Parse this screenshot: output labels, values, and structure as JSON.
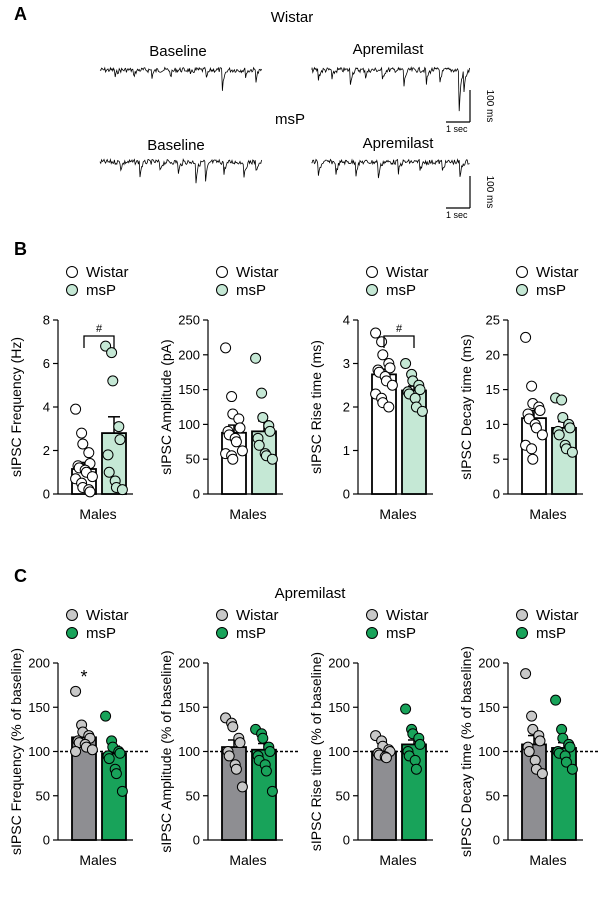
{
  "panels": {
    "A": {
      "label": "A",
      "groups": [
        {
          "title": "Wistar",
          "left_label": "Baseline",
          "right_label": "Apremilast"
        },
        {
          "title": "msP",
          "left_label": "Baseline",
          "right_label": "Apremilast"
        }
      ],
      "scale_bar": {
        "x_label": "1 sec",
        "y_label": "100 ms"
      }
    },
    "B": {
      "label": "B"
    },
    "C": {
      "label": "C",
      "title": "Apremilast"
    }
  },
  "legend": {
    "wistar": "Wistar",
    "msp": "msP"
  },
  "colors": {
    "wistar_B": "#ffffff",
    "msp_B": "#c5e8d5",
    "wistar_C": "#8e8e92",
    "wistar_C_point": "#c8c8c8",
    "msp_C": "#18a35a",
    "msp_C_point": "#18a35a"
  },
  "chart_data": [
    {
      "type": "bar",
      "panel": "B",
      "ylabel": "sIPSC Frequency (Hz)",
      "xlabel": "Males",
      "ylim": [
        0,
        8
      ],
      "yticks": [
        0,
        2,
        4,
        6,
        8
      ],
      "series": [
        {
          "name": "Wistar",
          "mean": 1.15,
          "sem": 0.3,
          "points": [
            3.9,
            2.8,
            2.3,
            1.9,
            1.4,
            1.3,
            1.2,
            1.1,
            1.0,
            0.8,
            0.7,
            0.5,
            0.3,
            0.2,
            0.1
          ]
        },
        {
          "name": "msP",
          "mean": 2.8,
          "sem": 0.75,
          "points": [
            6.8,
            6.5,
            5.2,
            3.1,
            2.5,
            1.8,
            1.0,
            0.6,
            0.3,
            0.2
          ]
        }
      ],
      "annotation": "#"
    },
    {
      "type": "bar",
      "panel": "B",
      "ylabel": "sIPSC Amplitude (pA)",
      "xlabel": "Males",
      "ylim": [
        0,
        250
      ],
      "yticks": [
        0,
        50,
        100,
        150,
        200,
        250
      ],
      "series": [
        {
          "name": "Wistar",
          "mean": 88,
          "sem": 11,
          "points": [
            210,
            140,
            115,
            108,
            95,
            90,
            85,
            80,
            75,
            62,
            58,
            55,
            50
          ]
        },
        {
          "name": "msP",
          "mean": 90,
          "sem": 15,
          "points": [
            195,
            145,
            110,
            98,
            90,
            80,
            70,
            58,
            55,
            50
          ]
        }
      ]
    },
    {
      "type": "bar",
      "panel": "B",
      "ylabel": "sIPSC Rise time (ms)",
      "xlabel": "Males",
      "ylim": [
        0,
        4
      ],
      "yticks": [
        0,
        1,
        2,
        3,
        4
      ],
      "series": [
        {
          "name": "Wistar",
          "mean": 2.75,
          "sem": 0.12,
          "points": [
            3.7,
            3.5,
            3.2,
            3.0,
            2.9,
            2.85,
            2.8,
            2.7,
            2.6,
            2.5,
            2.3,
            2.2,
            2.1,
            2.0
          ]
        },
        {
          "name": "msP",
          "mean": 2.38,
          "sem": 0.1,
          "points": [
            3.0,
            2.75,
            2.6,
            2.5,
            2.4,
            2.35,
            2.3,
            2.2,
            2.0,
            1.9
          ]
        }
      ],
      "annotation": "#"
    },
    {
      "type": "bar",
      "panel": "B",
      "ylabel": "sIPSC Decay time (ms)",
      "xlabel": "Males",
      "ylim": [
        0,
        25
      ],
      "yticks": [
        0,
        5,
        10,
        15,
        20,
        25
      ],
      "series": [
        {
          "name": "Wistar",
          "mean": 10.9,
          "sem": 1.1,
          "points": [
            22.5,
            15.5,
            13.0,
            12.5,
            12.0,
            11.5,
            10.8,
            10.0,
            9.5,
            8.5,
            7.0,
            6.5,
            5.0
          ]
        },
        {
          "name": "msP",
          "mean": 9.5,
          "sem": 0.9,
          "points": [
            13.8,
            13.5,
            11.0,
            10.0,
            9.5,
            9.0,
            8.5,
            7.0,
            6.5,
            6.0
          ]
        }
      ]
    },
    {
      "type": "bar",
      "panel": "C",
      "ylabel": "sIPSC Frequency (% of baseline)",
      "xlabel": "Males",
      "ylim": [
        0,
        200
      ],
      "yticks": [
        0,
        50,
        100,
        150,
        200
      ],
      "reference_line": 100,
      "series": [
        {
          "name": "Wistar",
          "mean": 116,
          "sem": 6,
          "points": [
            168,
            130,
            122,
            118,
            115,
            112,
            110,
            108,
            105,
            102,
            100
          ]
        },
        {
          "name": "msP",
          "mean": 98,
          "sem": 8,
          "points": [
            140,
            112,
            105,
            100,
            98,
            95,
            92,
            80,
            75,
            55
          ]
        }
      ],
      "annotation": "*"
    },
    {
      "type": "bar",
      "panel": "C",
      "ylabel": "sIPSC Amplitude (% of baseline)",
      "xlabel": "Males",
      "ylim": [
        0,
        200
      ],
      "yticks": [
        0,
        50,
        100,
        150,
        200
      ],
      "reference_line": 100,
      "series": [
        {
          "name": "Wistar",
          "mean": 105,
          "sem": 8,
          "points": [
            138,
            132,
            128,
            115,
            110,
            100,
            95,
            85,
            80,
            60
          ]
        },
        {
          "name": "msP",
          "mean": 102,
          "sem": 7,
          "points": [
            125,
            120,
            115,
            105,
            100,
            95,
            90,
            85,
            78,
            55
          ]
        }
      ]
    },
    {
      "type": "bar",
      "panel": "C",
      "ylabel": "sIPSC Rise time (% of baseline)",
      "xlabel": "Males",
      "ylim": [
        0,
        200
      ],
      "yticks": [
        0,
        50,
        100,
        150,
        200
      ],
      "reference_line": 100,
      "series": [
        {
          "name": "Wistar",
          "mean": 100,
          "sem": 2.5,
          "points": [
            118,
            112,
            106,
            102,
            100,
            98,
            96,
            94,
            93
          ]
        },
        {
          "name": "msP",
          "mean": 108,
          "sem": 5,
          "points": [
            148,
            125,
            120,
            115,
            108,
            100,
            95,
            90,
            80
          ]
        }
      ]
    },
    {
      "type": "bar",
      "panel": "C",
      "ylabel": "sIPSC Decay time (% of baseline)",
      "xlabel": "Males",
      "ylim": [
        0,
        200
      ],
      "yticks": [
        0,
        50,
        100,
        150,
        200
      ],
      "reference_line": 100,
      "series": [
        {
          "name": "Wistar",
          "mean": 108,
          "sem": 10,
          "points": [
            188,
            140,
            125,
            118,
            112,
            105,
            100,
            90,
            80,
            75
          ]
        },
        {
          "name": "msP",
          "mean": 104,
          "sem": 6,
          "points": [
            158,
            125,
            115,
            108,
            105,
            100,
            98,
            95,
            88,
            80
          ]
        }
      ]
    }
  ]
}
